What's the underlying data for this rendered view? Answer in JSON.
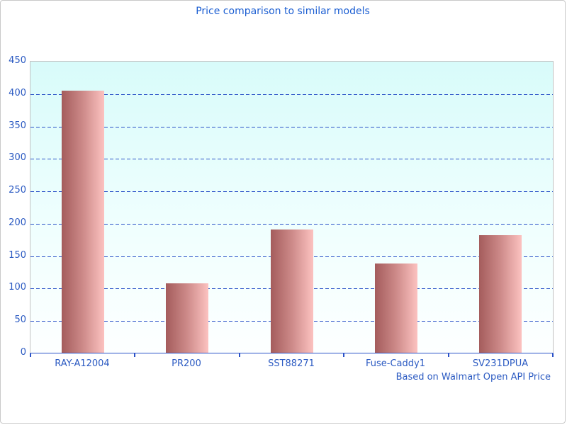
{
  "title": "Price comparison to similar models",
  "footnote": "Based on Walmart Open API Price",
  "colors": {
    "title_text": "#1b5ed2",
    "axis_label_text": "#2b5ac2",
    "grid_line": "#2b52c8",
    "axis_line": "#2b52c8",
    "plot_border": "#c2c2c2",
    "page_border": "#c9c9c9",
    "bar_gradient_dark": "#a45c5c",
    "bar_gradient_mid": "#cd8a89",
    "bar_gradient_light": "#fcc2c0",
    "plot_bg_top": "#d8fbfa",
    "plot_bg_bottom": "#fdffff"
  },
  "chart_data": {
    "type": "bar",
    "title": "Price comparison to similar models",
    "categories": [
      "RAY-A12004",
      "PR200",
      "SST88271",
      "Fuse-Caddy1",
      "SV231DPUA"
    ],
    "values": [
      404,
      107,
      190,
      138,
      181
    ],
    "xlabel": "",
    "ylabel": "",
    "ylim": [
      0,
      450
    ],
    "ytick_step": 50,
    "yticks": [
      0,
      50,
      100,
      150,
      200,
      250,
      300,
      350,
      400,
      450
    ],
    "grid": "horizontal-dashed",
    "legend": "none",
    "annotation": "Based on Walmart Open API Price"
  }
}
